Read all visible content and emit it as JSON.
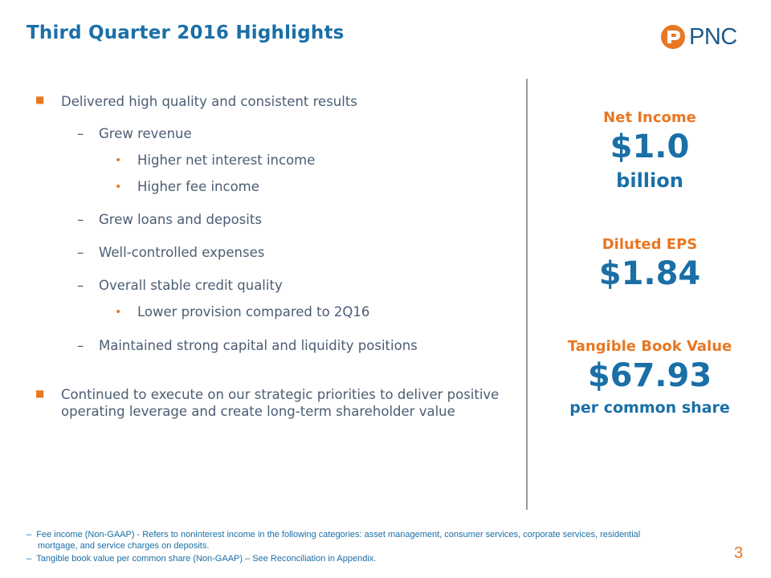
{
  "slide": {
    "title": "Third Quarter 2016 Highlights",
    "logo_text": "PNC",
    "page_number": "3"
  },
  "bullets": {
    "main1": "Delivered high quality and consistent results",
    "sub1": "Grew revenue",
    "sub1_a": "Higher net interest income",
    "sub1_b": "Higher fee income",
    "sub2": "Grew loans and deposits",
    "sub3": "Well-controlled expenses",
    "sub4": "Overall stable credit quality",
    "sub4_a": "Lower provision compared to 2Q16",
    "sub5": "Maintained strong capital and liquidity positions",
    "main2_line1": "Continued to execute on our strategic priorities to deliver positive",
    "main2_line2": "operating leverage and create long-term shareholder value"
  },
  "metrics": {
    "net_income_label": "Net Income",
    "net_income_value": "$1.0",
    "net_income_unit": "billion",
    "eps_label": "Diluted EPS",
    "eps_value": "$1.84",
    "tbv_label": "Tangible Book Value",
    "tbv_value": "$67.93",
    "tbv_unit": "per common share"
  },
  "footnotes": {
    "note1_line1": "Fee income (Non-GAAP) - Refers to noninterest income in the following categories: asset management, consumer services, corporate services, residential",
    "note1_line2": "mortgage, and service charges on deposits.",
    "note2": "Tangible book value per common share (Non-GAAP) – See Reconciliation in Appendix."
  },
  "colors": {
    "brand_blue": "#1a6fa7",
    "brand_orange": "#e87722",
    "body_text": "#4b5d74"
  },
  "icons": {
    "logo": "pnc-logo-icon",
    "bullet": "orange-square-bullet",
    "sub_bullet": "orange-dot-bullet"
  }
}
